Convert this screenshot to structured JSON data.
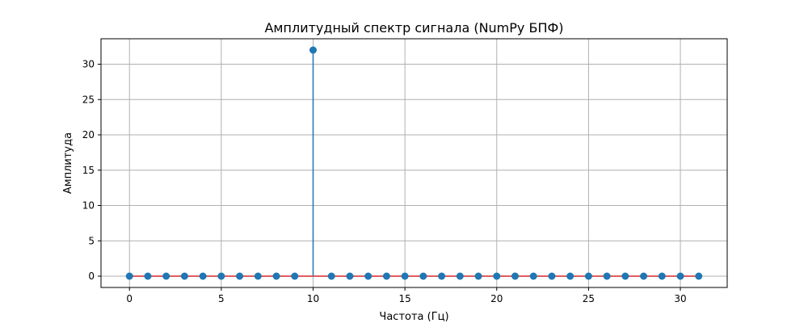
{
  "chart_data": {
    "type": "stem",
    "title": "Амплитудный спектр сигнала (NumPy БПФ)",
    "xlabel": "Частота (Гц)",
    "ylabel": "Амплитуда",
    "x": [
      0,
      1,
      2,
      3,
      4,
      5,
      6,
      7,
      8,
      9,
      10,
      11,
      12,
      13,
      14,
      15,
      16,
      17,
      18,
      19,
      20,
      21,
      22,
      23,
      24,
      25,
      26,
      27,
      28,
      29,
      30,
      31
    ],
    "y": [
      0,
      0,
      0,
      0,
      0,
      0,
      0,
      0,
      0,
      0,
      32,
      0,
      0,
      0,
      0,
      0,
      0,
      0,
      0,
      0,
      0,
      0,
      0,
      0,
      0,
      0,
      0,
      0,
      0,
      0,
      0,
      0
    ],
    "xlim": [
      -1.55,
      32.55
    ],
    "ylim": [
      -1.6,
      33.6
    ],
    "xticks": [
      0,
      5,
      10,
      15,
      20,
      25,
      30
    ],
    "yticks": [
      0,
      5,
      10,
      15,
      20,
      25,
      30
    ],
    "grid": true,
    "colors": {
      "marker": "#1f77b4",
      "stem": "#1f77b4",
      "baseline": "#d62728",
      "grid": "#b0b0b0"
    }
  }
}
